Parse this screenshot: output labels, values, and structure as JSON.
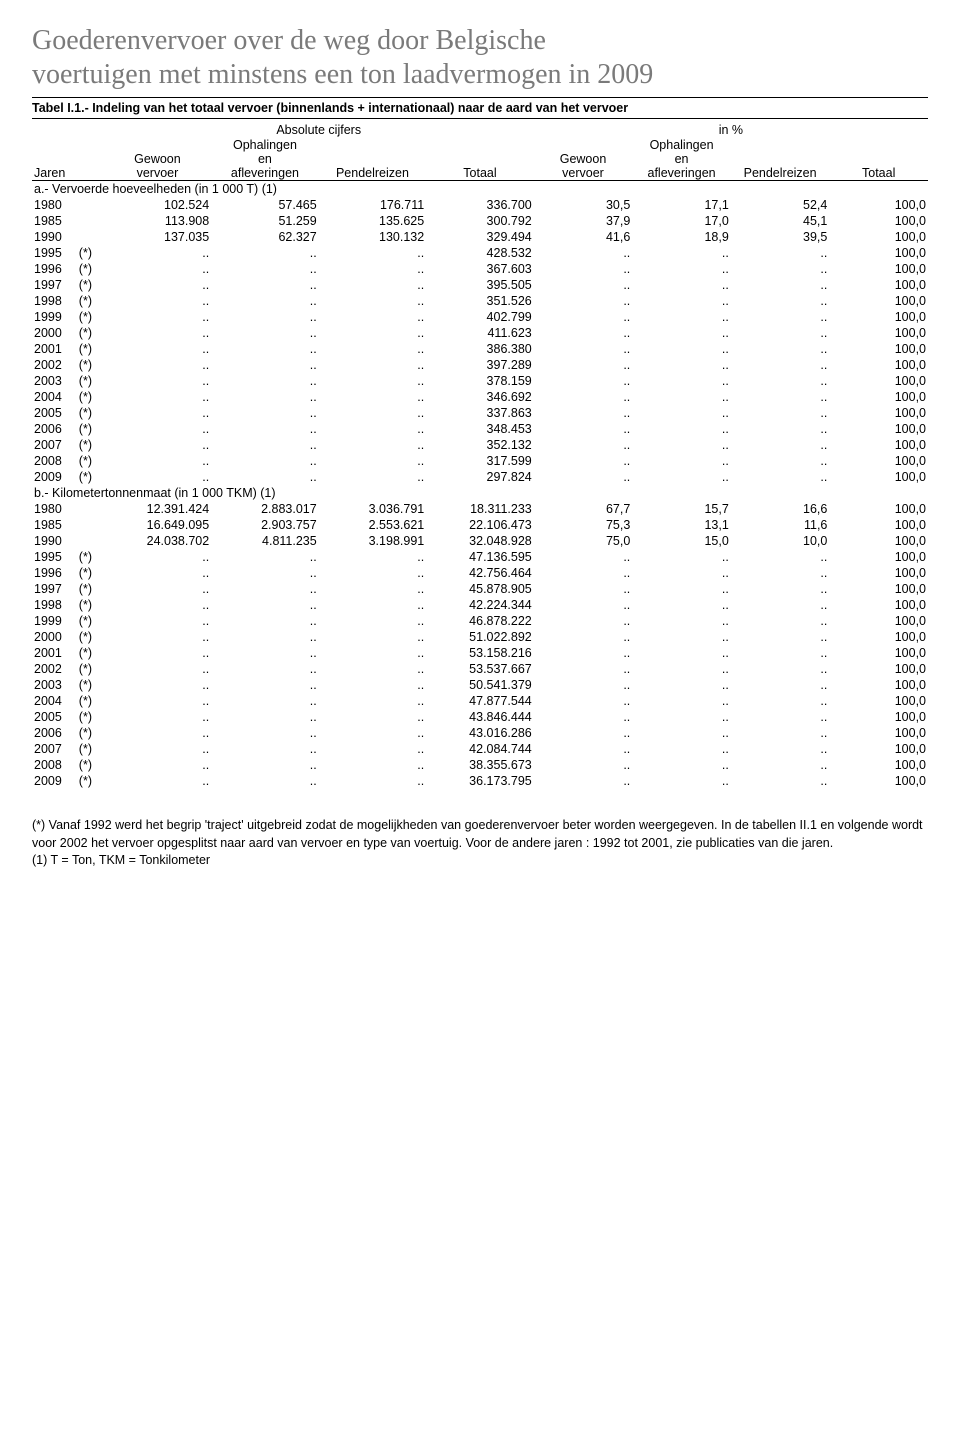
{
  "doc": {
    "title_line1": "Goederenvervoer over de weg door Belgische",
    "title_line2": "voertuigen met minstens een ton laadvermogen in 2009",
    "table_label": "Tabel I.1.- Indeling van het totaal vervoer (binnenlands + internationaal) naar de aard  van het vervoer"
  },
  "header": {
    "abs_label": "Absolute cijfers",
    "pct_label": "in %",
    "jaren": "Jaren",
    "gewoon": "Gewoon",
    "vervoer": "vervoer",
    "ophalingen": "Ophalingen",
    "en": "en",
    "afleveringen": "afleveringen",
    "pendelreizen": "Pendelreizen",
    "totaal": "Totaal"
  },
  "section_a": {
    "title": "a.- Vervoerde hoeveelheden (in 1 000 T) (1)",
    "rows": [
      {
        "year": "1980",
        "note": "",
        "c1": "102.524",
        "c2": "57.465",
        "c3": "176.711",
        "c4": "336.700",
        "p1": "30,5",
        "p2": "17,1",
        "p3": "52,4",
        "p4": "100,0"
      },
      {
        "year": "1985",
        "note": "",
        "c1": "113.908",
        "c2": "51.259",
        "c3": "135.625",
        "c4": "300.792",
        "p1": "37,9",
        "p2": "17,0",
        "p3": "45,1",
        "p4": "100,0"
      },
      {
        "year": "1990",
        "note": "",
        "c1": "137.035",
        "c2": "62.327",
        "c3": "130.132",
        "c4": "329.494",
        "p1": "41,6",
        "p2": "18,9",
        "p3": "39,5",
        "p4": "100,0"
      },
      {
        "year": "1995",
        "note": "(*)",
        "c1": "..",
        "c2": "..",
        "c3": "..",
        "c4": "428.532",
        "p1": "..",
        "p2": "..",
        "p3": "..",
        "p4": "100,0"
      },
      {
        "year": "1996",
        "note": "(*)",
        "c1": "..",
        "c2": "..",
        "c3": "..",
        "c4": "367.603",
        "p1": "..",
        "p2": "..",
        "p3": "..",
        "p4": "100,0"
      },
      {
        "year": "1997",
        "note": "(*)",
        "c1": "..",
        "c2": "..",
        "c3": "..",
        "c4": "395.505",
        "p1": "..",
        "p2": "..",
        "p3": "..",
        "p4": "100,0"
      },
      {
        "year": "1998",
        "note": "(*)",
        "c1": "..",
        "c2": "..",
        "c3": "..",
        "c4": "351.526",
        "p1": "..",
        "p2": "..",
        "p3": "..",
        "p4": "100,0"
      },
      {
        "year": "1999",
        "note": "(*)",
        "c1": "..",
        "c2": "..",
        "c3": "..",
        "c4": "402.799",
        "p1": "..",
        "p2": "..",
        "p3": "..",
        "p4": "100,0"
      },
      {
        "year": "2000",
        "note": "(*)",
        "c1": "..",
        "c2": "..",
        "c3": "..",
        "c4": "411.623",
        "p1": "..",
        "p2": "..",
        "p3": "..",
        "p4": "100,0"
      },
      {
        "year": "2001",
        "note": "(*)",
        "c1": "..",
        "c2": "..",
        "c3": "..",
        "c4": "386.380",
        "p1": "..",
        "p2": "..",
        "p3": "..",
        "p4": "100,0"
      },
      {
        "year": "2002",
        "note": "(*)",
        "c1": "..",
        "c2": "..",
        "c3": "..",
        "c4": "397.289",
        "p1": "..",
        "p2": "..",
        "p3": "..",
        "p4": "100,0"
      },
      {
        "year": "2003",
        "note": "(*)",
        "c1": "..",
        "c2": "..",
        "c3": "..",
        "c4": "378.159",
        "p1": "..",
        "p2": "..",
        "p3": "..",
        "p4": "100,0"
      },
      {
        "year": "2004",
        "note": "(*)",
        "c1": "..",
        "c2": "..",
        "c3": "..",
        "c4": "346.692",
        "p1": "..",
        "p2": "..",
        "p3": "..",
        "p4": "100,0"
      },
      {
        "year": "2005",
        "note": "(*)",
        "c1": "..",
        "c2": "..",
        "c3": "..",
        "c4": "337.863",
        "p1": "..",
        "p2": "..",
        "p3": "..",
        "p4": "100,0"
      },
      {
        "year": "2006",
        "note": "(*)",
        "c1": "..",
        "c2": "..",
        "c3": "..",
        "c4": "348.453",
        "p1": "..",
        "p2": "..",
        "p3": "..",
        "p4": "100,0"
      },
      {
        "year": "2007",
        "note": "(*)",
        "c1": "..",
        "c2": "..",
        "c3": "..",
        "c4": "352.132",
        "p1": "..",
        "p2": "..",
        "p3": "..",
        "p4": "100,0"
      },
      {
        "year": "2008",
        "note": "(*)",
        "c1": "..",
        "c2": "..",
        "c3": "..",
        "c4": "317.599",
        "p1": "..",
        "p2": "..",
        "p3": "..",
        "p4": "100,0",
        "bold": true
      },
      {
        "year": "2009",
        "note": "(*)",
        "c1": "..",
        "c2": "..",
        "c3": "..",
        "c4": "297.824",
        "p1": "..",
        "p2": "..",
        "p3": "..",
        "p4": "100,0",
        "bold": true
      }
    ]
  },
  "section_b": {
    "title": "b.- Kilometertonnenmaat (in 1 000 TKM) (1)",
    "rows": [
      {
        "year": "1980",
        "note": "",
        "c1": "12.391.424",
        "c2": "2.883.017",
        "c3": "3.036.791",
        "c4": "18.311.233",
        "p1": "67,7",
        "p2": "15,7",
        "p3": "16,6",
        "p4": "100,0"
      },
      {
        "year": "1985",
        "note": "",
        "c1": "16.649.095",
        "c2": "2.903.757",
        "c3": "2.553.621",
        "c4": "22.106.473",
        "p1": "75,3",
        "p2": "13,1",
        "p3": "11,6",
        "p4": "100,0"
      },
      {
        "year": "1990",
        "note": "",
        "c1": "24.038.702",
        "c2": "4.811.235",
        "c3": "3.198.991",
        "c4": "32.048.928",
        "p1": "75,0",
        "p2": "15,0",
        "p3": "10,0",
        "p4": "100,0"
      },
      {
        "year": "1995",
        "note": "(*)",
        "c1": "..",
        "c2": "..",
        "c3": "..",
        "c4": "47.136.595",
        "p1": "..",
        "p2": "..",
        "p3": "..",
        "p4": "100,0"
      },
      {
        "year": "1996",
        "note": "(*)",
        "c1": "..",
        "c2": "..",
        "c3": "..",
        "c4": "42.756.464",
        "p1": "..",
        "p2": "..",
        "p3": "..",
        "p4": "100,0"
      },
      {
        "year": "1997",
        "note": "(*)",
        "c1": "..",
        "c2": "..",
        "c3": "..",
        "c4": "45.878.905",
        "p1": "..",
        "p2": "..",
        "p3": "..",
        "p4": "100,0"
      },
      {
        "year": "1998",
        "note": "(*)",
        "c1": "..",
        "c2": "..",
        "c3": "..",
        "c4": "42.224.344",
        "p1": "..",
        "p2": "..",
        "p3": "..",
        "p4": "100,0"
      },
      {
        "year": "1999",
        "note": "(*)",
        "c1": "..",
        "c2": "..",
        "c3": "..",
        "c4": "46.878.222",
        "p1": "..",
        "p2": "..",
        "p3": "..",
        "p4": "100,0"
      },
      {
        "year": "2000",
        "note": "(*)",
        "c1": "..",
        "c2": "..",
        "c3": "..",
        "c4": "51.022.892",
        "p1": "..",
        "p2": "..",
        "p3": "..",
        "p4": "100,0"
      },
      {
        "year": "2001",
        "note": "(*)",
        "c1": "..",
        "c2": "..",
        "c3": "..",
        "c4": "53.158.216",
        "p1": "..",
        "p2": "..",
        "p3": "..",
        "p4": "100,0"
      },
      {
        "year": "2002",
        "note": "(*)",
        "c1": "..",
        "c2": "..",
        "c3": "..",
        "c4": "53.537.667",
        "p1": "..",
        "p2": "..",
        "p3": "..",
        "p4": "100,0"
      },
      {
        "year": "2003",
        "note": "(*)",
        "c1": "..",
        "c2": "..",
        "c3": "..",
        "c4": "50.541.379",
        "p1": "..",
        "p2": "..",
        "p3": "..",
        "p4": "100,0"
      },
      {
        "year": "2004",
        "note": "(*)",
        "c1": "..",
        "c2": "..",
        "c3": "..",
        "c4": "47.877.544",
        "p1": "..",
        "p2": "..",
        "p3": "..",
        "p4": "100,0"
      },
      {
        "year": "2005",
        "note": "(*)",
        "c1": "..",
        "c2": "..",
        "c3": "..",
        "c4": "43.846.444",
        "p1": "..",
        "p2": "..",
        "p3": "..",
        "p4": "100,0"
      },
      {
        "year": "2006",
        "note": "(*)",
        "c1": "..",
        "c2": "..",
        "c3": "..",
        "c4": "43.016.286",
        "p1": "..",
        "p2": "..",
        "p3": "..",
        "p4": "100,0"
      },
      {
        "year": "2007",
        "note": "(*)",
        "c1": "..",
        "c2": "..",
        "c3": "..",
        "c4": "42.084.744",
        "p1": "..",
        "p2": "..",
        "p3": "..",
        "p4": "100,0"
      },
      {
        "year": "2008",
        "note": "(*)",
        "c1": "..",
        "c2": "..",
        "c3": "..",
        "c4": "38.355.673",
        "p1": "..",
        "p2": "..",
        "p3": "..",
        "p4": "100,0",
        "bold": true
      },
      {
        "year": "2009",
        "note": "(*)",
        "c1": "..",
        "c2": "..",
        "c3": "..",
        "c4": "36.173.795",
        "p1": "..",
        "p2": "..",
        "p3": "..",
        "p4": "100,0",
        "bold": true
      }
    ]
  },
  "footnotes": {
    "f1": "(*) Vanaf 1992 werd het begrip 'traject' uitgebreid zodat de mogelijkheden van goederenvervoer beter worden weergegeven. In de tabellen II.1 en volgende wordt voor 2002 het vervoer opgesplitst naar aard van vervoer en type van voertuig. Voor de andere jaren : 1992 tot 2001, zie publicaties van die jaren.",
    "f2": "(1) T = Ton, TKM = Tonkilometer"
  },
  "style": {
    "title_color": "#7a7a7a",
    "font_size_body": 12.5,
    "col_widths_pct": [
      5,
      3,
      12,
      12,
      12,
      12,
      11,
      11,
      11,
      11
    ]
  }
}
